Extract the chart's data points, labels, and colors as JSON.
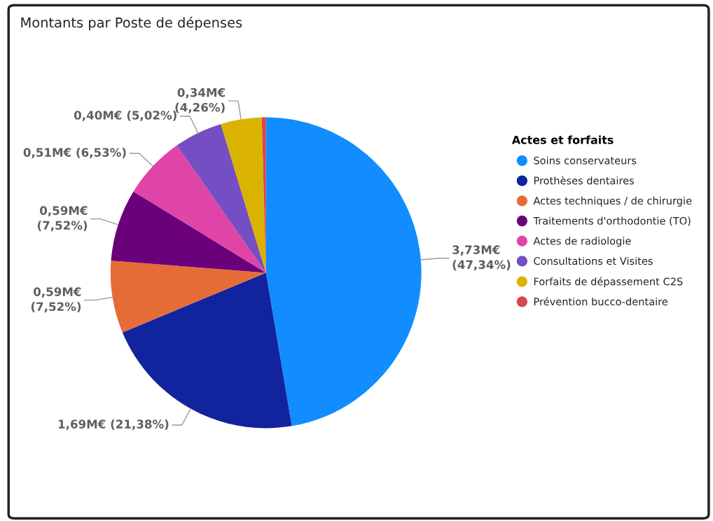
{
  "chart_data": {
    "type": "pie",
    "title": "Montants par Poste de dépenses",
    "legend_title": "Actes et forfaits",
    "legend": "right",
    "categories": [
      "Soins conservateurs",
      "Prothèses dentaires",
      "Actes techniques / de chirurgie",
      "Traitements d'orthodontie (TO)",
      "Actes de radiologie",
      "Consultations et Visites",
      "Forfaits de dépassement C2S",
      "Prévention bucco-dentaire"
    ],
    "values": [
      47.34,
      21.38,
      7.52,
      7.52,
      6.53,
      5.02,
      4.26,
      0.43
    ],
    "colors": [
      "#118dff",
      "#12239e",
      "#e66c37",
      "#6b007b",
      "#e044a7",
      "#744ec2",
      "#d9b300",
      "#d64550"
    ],
    "value_labels": [
      "3,73M€\n(47,34%)",
      "1,69M€ (21,38%)",
      "0,59M€\n(7,52%)",
      "0,59M€\n(7,52%)",
      "0,51M€ (6,53%)",
      "0,40M€ (5,02%)",
      "0,34M€\n(4,26%)",
      null
    ]
  }
}
